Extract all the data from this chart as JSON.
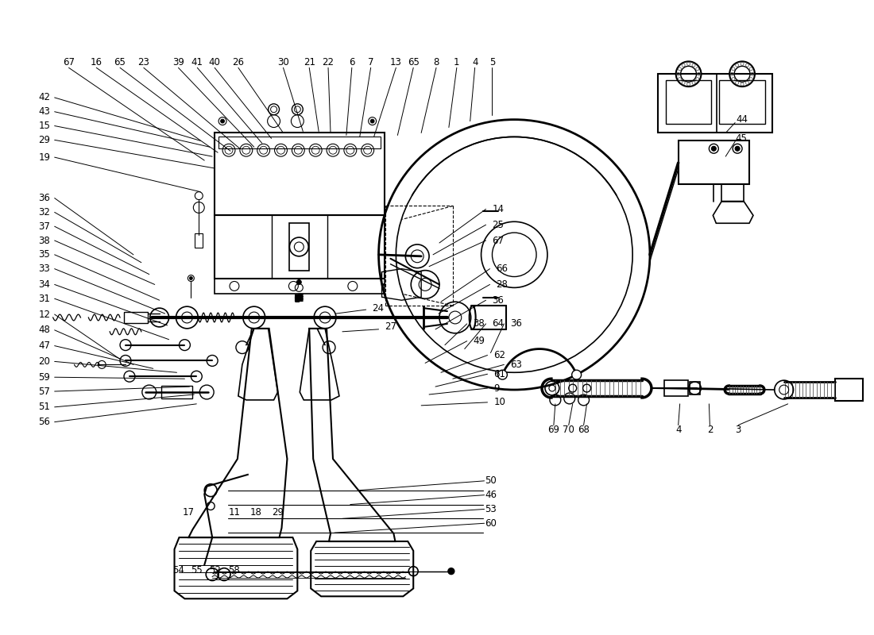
{
  "bg": "#ffffff",
  "lc": "#000000",
  "figsize": [
    11.0,
    8.0
  ],
  "dpi": 100,
  "top_labels": [
    [
      83,
      75,
      "67"
    ],
    [
      118,
      75,
      "16"
    ],
    [
      148,
      75,
      "65"
    ],
    [
      178,
      75,
      "23"
    ],
    [
      222,
      75,
      "39"
    ],
    [
      246,
      75,
      "41"
    ],
    [
      268,
      75,
      "40"
    ],
    [
      298,
      75,
      "26"
    ],
    [
      355,
      75,
      "30"
    ],
    [
      388,
      75,
      "21"
    ],
    [
      412,
      75,
      "22"
    ],
    [
      442,
      75,
      "6"
    ],
    [
      466,
      75,
      "7"
    ],
    [
      498,
      75,
      "13"
    ],
    [
      520,
      75,
      "65"
    ],
    [
      549,
      75,
      "8"
    ],
    [
      575,
      75,
      "1"
    ],
    [
      598,
      75,
      "4"
    ],
    [
      620,
      75,
      "5"
    ]
  ],
  "left_labels": [
    [
      52,
      120,
      "42"
    ],
    [
      52,
      138,
      "43"
    ],
    [
      52,
      156,
      "15"
    ],
    [
      52,
      174,
      "29"
    ],
    [
      52,
      196,
      "19"
    ],
    [
      52,
      248,
      "36"
    ],
    [
      52,
      266,
      "32"
    ],
    [
      52,
      284,
      "37"
    ],
    [
      52,
      302,
      "38"
    ],
    [
      52,
      320,
      "35"
    ],
    [
      52,
      338,
      "33"
    ],
    [
      52,
      358,
      "34"
    ],
    [
      52,
      376,
      "31"
    ],
    [
      52,
      396,
      "12"
    ],
    [
      52,
      416,
      "48"
    ],
    [
      52,
      436,
      "47"
    ],
    [
      52,
      456,
      "20"
    ],
    [
      52,
      476,
      "59"
    ],
    [
      52,
      494,
      "57"
    ],
    [
      52,
      514,
      "51"
    ],
    [
      52,
      533,
      "56"
    ]
  ],
  "right_labels_mid": [
    [
      620,
      262,
      "14"
    ],
    [
      620,
      282,
      "25"
    ],
    [
      620,
      302,
      "67"
    ],
    [
      625,
      338,
      "66"
    ],
    [
      625,
      358,
      "28"
    ],
    [
      620,
      378,
      "36"
    ],
    [
      468,
      388,
      "24"
    ],
    [
      484,
      412,
      "27"
    ],
    [
      596,
      408,
      "38"
    ],
    [
      620,
      408,
      "64"
    ],
    [
      643,
      408,
      "36"
    ],
    [
      596,
      430,
      "49"
    ],
    [
      622,
      448,
      "62"
    ],
    [
      643,
      460,
      "63"
    ],
    [
      622,
      472,
      "61"
    ],
    [
      622,
      490,
      "9"
    ],
    [
      622,
      508,
      "10"
    ]
  ],
  "bottom_labels": [
    [
      235,
      648,
      "17"
    ],
    [
      293,
      648,
      "11"
    ],
    [
      320,
      648,
      "18"
    ],
    [
      348,
      648,
      "29"
    ],
    [
      618,
      608,
      "50"
    ],
    [
      618,
      626,
      "46"
    ],
    [
      618,
      644,
      "53"
    ],
    [
      618,
      662,
      "60"
    ],
    [
      222,
      722,
      "54"
    ],
    [
      245,
      722,
      "55"
    ],
    [
      268,
      722,
      "52"
    ],
    [
      293,
      722,
      "58"
    ]
  ],
  "right_group_labels": [
    [
      698,
      543,
      "69"
    ],
    [
      717,
      543,
      "70"
    ],
    [
      736,
      543,
      "68"
    ],
    [
      856,
      543,
      "4"
    ],
    [
      896,
      543,
      "2"
    ],
    [
      932,
      543,
      "3"
    ],
    [
      937,
      148,
      "44"
    ],
    [
      936,
      172,
      "45"
    ]
  ]
}
